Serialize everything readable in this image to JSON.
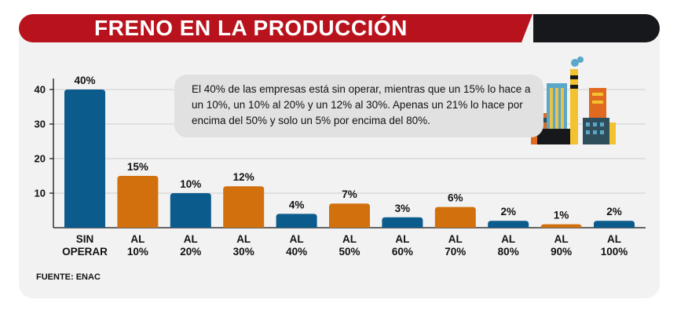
{
  "header": {
    "title": "FRENO EN LA PRODUCCIÓN"
  },
  "note": {
    "text": "El 40% de las empresas está sin operar, mientras que un 15% lo hace a un 10%, un 10% al 20% y un 12% al 30%. Apenas un 21% lo hace por encima del 50% y solo un 5% por encima del 80%."
  },
  "footer": {
    "source": "FUENTE: ENAC"
  },
  "colors": {
    "blue": "#0b5b8c",
    "orange": "#d2700e",
    "banner_red": "#b8121c",
    "banner_dark": "#16181b",
    "background": "#f2f2f2"
  },
  "decoration": {
    "icon": "factory-icon"
  },
  "chart_data": {
    "type": "bar",
    "title": "FRENO EN LA PRODUCCIÓN",
    "xlabel": "",
    "ylabel": "",
    "ylim": [
      0,
      44
    ],
    "yticks": [
      10,
      20,
      30,
      40
    ],
    "categories": [
      [
        "SIN",
        "OPERAR"
      ],
      [
        "AL",
        "10%"
      ],
      [
        "AL",
        "20%"
      ],
      [
        "AL",
        "30%"
      ],
      [
        "AL",
        "40%"
      ],
      [
        "AL",
        "50%"
      ],
      [
        "AL",
        "60%"
      ],
      [
        "AL",
        "70%"
      ],
      [
        "AL",
        "80%"
      ],
      [
        "AL",
        "90%"
      ],
      [
        "AL",
        "100%"
      ]
    ],
    "values": [
      40,
      15,
      10,
      12,
      4,
      7,
      3,
      6,
      2,
      1,
      2
    ],
    "labels": [
      "40%",
      "15%",
      "10%",
      "12%",
      "4%",
      "7%",
      "3%",
      "6%",
      "2%",
      "1%",
      "2%"
    ],
    "bar_colors": [
      "blue",
      "orange",
      "blue",
      "orange",
      "blue",
      "orange",
      "blue",
      "orange",
      "blue",
      "orange",
      "blue"
    ],
    "grid": true,
    "legend": "none"
  }
}
